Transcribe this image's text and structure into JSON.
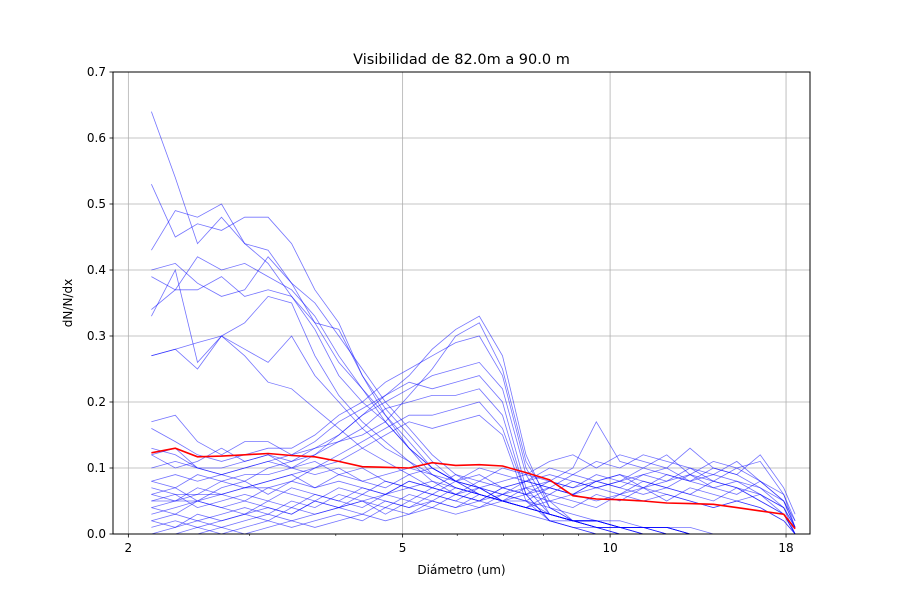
{
  "chart_data": {
    "type": "line",
    "title": "Visibilidad de 82.0m a 90.0 m",
    "xlabel": "Diámetro (um)",
    "ylabel": "dN/N/dx",
    "xscale": "log",
    "xlim": [
      1.9,
      19.5
    ],
    "ylim": [
      0,
      0.7
    ],
    "xticks": [
      2,
      5,
      10,
      18
    ],
    "xtick_labels": [
      "2",
      "5",
      "10",
      "18"
    ],
    "yticks": [
      0.0,
      0.1,
      0.2,
      0.3,
      0.4,
      0.5,
      0.6,
      0.7
    ],
    "ytick_labels": [
      "0.0",
      "0.1",
      "0.2",
      "0.3",
      "0.4",
      "0.5",
      "0.6",
      "0.7"
    ],
    "grid": true,
    "x": [
      2.16,
      2.34,
      2.52,
      2.73,
      2.95,
      3.19,
      3.45,
      3.73,
      4.04,
      4.37,
      4.72,
      5.11,
      5.52,
      5.97,
      6.46,
      6.98,
      7.55,
      8.17,
      8.83,
      9.55,
      10.33,
      11.17,
      12.08,
      13.06,
      14.12,
      15.27,
      16.51,
      17.86,
      18.55
    ],
    "individual_color": "#0000ff",
    "mean_color": "#ff0000",
    "series": [
      {
        "values": [
          0.64,
          0.54,
          0.44,
          0.48,
          0.44,
          0.43,
          0.38,
          0.32,
          0.26,
          0.22,
          0.18,
          0.13,
          0.09,
          0.07,
          0.06,
          0.05,
          0.05,
          0.03,
          0.02,
          0.02,
          0.01,
          0.01,
          0.01,
          0.0,
          0.0,
          0.0,
          0.0,
          0.0,
          0.0
        ]
      },
      {
        "values": [
          0.53,
          0.45,
          0.47,
          0.46,
          0.48,
          0.48,
          0.44,
          0.37,
          0.32,
          0.24,
          0.19,
          0.15,
          0.11,
          0.08,
          0.07,
          0.05,
          0.04,
          0.03,
          0.02,
          0.02,
          0.01,
          0.01,
          0.01,
          0.0,
          0.0,
          0.0,
          0.0,
          0.0,
          0.0
        ]
      },
      {
        "values": [
          0.43,
          0.49,
          0.48,
          0.5,
          0.44,
          0.41,
          0.36,
          0.32,
          0.31,
          0.24,
          0.18,
          0.14,
          0.1,
          0.08,
          0.06,
          0.05,
          0.04,
          0.03,
          0.02,
          0.02,
          0.01,
          0.01,
          0.0,
          0.0,
          0.0,
          0.0,
          0.0,
          0.0,
          0.0
        ]
      },
      {
        "values": [
          0.4,
          0.41,
          0.38,
          0.36,
          0.37,
          0.42,
          0.38,
          0.35,
          0.3,
          0.25,
          0.2,
          0.16,
          0.12,
          0.09,
          0.07,
          0.06,
          0.05,
          0.04,
          0.03,
          0.02,
          0.02,
          0.01,
          0.01,
          0.01,
          0.0,
          0.0,
          0.0,
          0.0,
          0.0
        ]
      },
      {
        "values": [
          0.39,
          0.37,
          0.42,
          0.4,
          0.41,
          0.39,
          0.37,
          0.33,
          0.27,
          0.22,
          0.17,
          0.13,
          0.1,
          0.08,
          0.06,
          0.05,
          0.04,
          0.03,
          0.02,
          0.02,
          0.01,
          0.01,
          0.01,
          0.0,
          0.0,
          0.0,
          0.0,
          0.0,
          0.0
        ]
      },
      {
        "values": [
          0.34,
          0.37,
          0.37,
          0.39,
          0.36,
          0.37,
          0.36,
          0.31,
          0.24,
          0.2,
          0.17,
          0.13,
          0.1,
          0.08,
          0.07,
          0.05,
          0.04,
          0.03,
          0.02,
          0.02,
          0.01,
          0.01,
          0.01,
          0.0,
          0.0,
          0.0,
          0.0,
          0.0,
          0.0
        ]
      },
      {
        "values": [
          0.33,
          0.4,
          0.26,
          0.3,
          0.32,
          0.36,
          0.35,
          0.27,
          0.21,
          0.17,
          0.14,
          0.11,
          0.09,
          0.07,
          0.06,
          0.05,
          0.04,
          0.03,
          0.02,
          0.02,
          0.01,
          0.01,
          0.0,
          0.0,
          0.0,
          0.0,
          0.0,
          0.0,
          0.0
        ]
      },
      {
        "values": [
          0.27,
          0.28,
          0.29,
          0.3,
          0.28,
          0.26,
          0.3,
          0.24,
          0.2,
          0.16,
          0.13,
          0.11,
          0.08,
          0.07,
          0.06,
          0.05,
          0.04,
          0.03,
          0.02,
          0.02,
          0.01,
          0.01,
          0.01,
          0.0,
          0.0,
          0.0,
          0.0,
          0.0,
          0.0
        ]
      },
      {
        "values": [
          0.27,
          0.28,
          0.25,
          0.3,
          0.27,
          0.23,
          0.22,
          0.19,
          0.16,
          0.13,
          0.11,
          0.09,
          0.07,
          0.06,
          0.05,
          0.04,
          0.03,
          0.02,
          0.02,
          0.01,
          0.01,
          0.01,
          0.0,
          0.0,
          0.0,
          0.0,
          0.0,
          0.0,
          0.0
        ]
      },
      {
        "values": [
          0.17,
          0.18,
          0.14,
          0.12,
          0.14,
          0.14,
          0.12,
          0.13,
          0.14,
          0.15,
          0.17,
          0.21,
          0.25,
          0.3,
          0.32,
          0.25,
          0.11,
          0.05,
          0.02,
          0.01,
          0.01,
          0.0,
          0.0,
          0.0,
          0.0,
          0.0,
          0.0,
          0.0,
          0.0
        ]
      },
      {
        "values": [
          0.13,
          0.12,
          0.1,
          0.09,
          0.1,
          0.11,
          0.12,
          0.14,
          0.17,
          0.19,
          0.21,
          0.24,
          0.28,
          0.31,
          0.33,
          0.27,
          0.12,
          0.04,
          0.02,
          0.01,
          0.01,
          0.0,
          0.0,
          0.0,
          0.0,
          0.0,
          0.0,
          0.0,
          0.0
        ]
      },
      {
        "values": [
          0.16,
          0.14,
          0.12,
          0.11,
          0.12,
          0.13,
          0.13,
          0.15,
          0.18,
          0.2,
          0.23,
          0.25,
          0.27,
          0.29,
          0.3,
          0.24,
          0.1,
          0.04,
          0.02,
          0.01,
          0.01,
          0.0,
          0.0,
          0.0,
          0.0,
          0.0,
          0.0,
          0.0,
          0.0
        ]
      },
      {
        "values": [
          0.12,
          0.13,
          0.1,
          0.1,
          0.11,
          0.12,
          0.11,
          0.12,
          0.15,
          0.18,
          0.2,
          0.22,
          0.24,
          0.25,
          0.26,
          0.22,
          0.09,
          0.03,
          0.02,
          0.01,
          0.0,
          0.0,
          0.0,
          0.0,
          0.0,
          0.0,
          0.0,
          0.0,
          0.0
        ]
      },
      {
        "values": [
          0.08,
          0.09,
          0.08,
          0.09,
          0.08,
          0.1,
          0.11,
          0.13,
          0.15,
          0.18,
          0.21,
          0.23,
          0.22,
          0.23,
          0.24,
          0.2,
          0.07,
          0.03,
          0.02,
          0.01,
          0.0,
          0.0,
          0.0,
          0.0,
          0.0,
          0.0,
          0.0,
          0.0,
          0.0
        ]
      },
      {
        "values": [
          0.07,
          0.06,
          0.06,
          0.08,
          0.09,
          0.09,
          0.1,
          0.12,
          0.14,
          0.16,
          0.19,
          0.2,
          0.21,
          0.21,
          0.22,
          0.18,
          0.06,
          0.02,
          0.01,
          0.01,
          0.0,
          0.0,
          0.0,
          0.0,
          0.0,
          0.0,
          0.0,
          0.0,
          0.0
        ]
      },
      {
        "values": [
          0.05,
          0.05,
          0.05,
          0.06,
          0.07,
          0.08,
          0.09,
          0.1,
          0.12,
          0.14,
          0.16,
          0.18,
          0.18,
          0.19,
          0.2,
          0.16,
          0.06,
          0.02,
          0.01,
          0.0,
          0.0,
          0.0,
          0.0,
          0.0,
          0.0,
          0.0,
          0.0,
          0.0,
          0.0
        ]
      },
      {
        "values": [
          0.04,
          0.05,
          0.06,
          0.06,
          0.07,
          0.07,
          0.08,
          0.1,
          0.11,
          0.13,
          0.15,
          0.17,
          0.16,
          0.17,
          0.18,
          0.15,
          0.05,
          0.02,
          0.01,
          0.0,
          0.0,
          0.0,
          0.0,
          0.0,
          0.0,
          0.0,
          0.0,
          0.0,
          0.0
        ]
      },
      {
        "values": [
          0.1,
          0.11,
          0.1,
          0.09,
          0.1,
          0.11,
          0.1,
          0.09,
          0.1,
          0.08,
          0.09,
          0.1,
          0.09,
          0.08,
          0.1,
          0.09,
          0.08,
          0.1,
          0.09,
          0.11,
          0.1,
          0.12,
          0.11,
          0.1,
          0.09,
          0.11,
          0.08,
          0.05,
          0.02
        ]
      },
      {
        "values": [
          0.05,
          0.06,
          0.04,
          0.05,
          0.06,
          0.05,
          0.07,
          0.06,
          0.05,
          0.07,
          0.06,
          0.08,
          0.07,
          0.09,
          0.08,
          0.1,
          0.09,
          0.11,
          0.12,
          0.1,
          0.12,
          0.11,
          0.1,
          0.13,
          0.1,
          0.09,
          0.12,
          0.07,
          0.03
        ]
      },
      {
        "values": [
          0.03,
          0.04,
          0.05,
          0.04,
          0.03,
          0.05,
          0.04,
          0.06,
          0.05,
          0.04,
          0.06,
          0.07,
          0.06,
          0.08,
          0.07,
          0.08,
          0.09,
          0.08,
          0.1,
          0.17,
          0.11,
          0.1,
          0.12,
          0.09,
          0.11,
          0.1,
          0.08,
          0.06,
          0.01
        ]
      },
      {
        "values": [
          0.02,
          0.03,
          0.02,
          0.03,
          0.04,
          0.03,
          0.05,
          0.04,
          0.06,
          0.05,
          0.04,
          0.06,
          0.05,
          0.07,
          0.06,
          0.05,
          0.07,
          0.08,
          0.07,
          0.09,
          0.08,
          0.1,
          0.09,
          0.08,
          0.1,
          0.09,
          0.07,
          0.05,
          0.01
        ]
      },
      {
        "values": [
          0.06,
          0.05,
          0.07,
          0.06,
          0.05,
          0.07,
          0.06,
          0.05,
          0.07,
          0.06,
          0.08,
          0.07,
          0.06,
          0.05,
          0.07,
          0.06,
          0.08,
          0.07,
          0.09,
          0.08,
          0.07,
          0.09,
          0.08,
          0.09,
          0.07,
          0.06,
          0.08,
          0.05,
          0.01
        ]
      },
      {
        "values": [
          0.01,
          0.02,
          0.01,
          0.02,
          0.03,
          0.02,
          0.04,
          0.03,
          0.04,
          0.05,
          0.03,
          0.05,
          0.04,
          0.06,
          0.05,
          0.07,
          0.06,
          0.08,
          0.07,
          0.08,
          0.09,
          0.07,
          0.08,
          0.1,
          0.08,
          0.07,
          0.06,
          0.04,
          0.0
        ]
      },
      {
        "values": [
          0.0,
          0.01,
          0.02,
          0.01,
          0.02,
          0.03,
          0.02,
          0.03,
          0.04,
          0.03,
          0.05,
          0.04,
          0.06,
          0.05,
          0.04,
          0.06,
          0.07,
          0.06,
          0.08,
          0.07,
          0.08,
          0.07,
          0.09,
          0.08,
          0.07,
          0.08,
          0.06,
          0.04,
          0.01
        ]
      },
      {
        "values": [
          0.08,
          0.07,
          0.09,
          0.08,
          0.07,
          0.08,
          0.09,
          0.07,
          0.08,
          0.07,
          0.06,
          0.08,
          0.07,
          0.06,
          0.08,
          0.07,
          0.06,
          0.07,
          0.06,
          0.08,
          0.07,
          0.06,
          0.07,
          0.06,
          0.05,
          0.07,
          0.05,
          0.03,
          0.0
        ]
      },
      {
        "values": [
          0.04,
          0.03,
          0.05,
          0.04,
          0.05,
          0.04,
          0.03,
          0.05,
          0.04,
          0.06,
          0.05,
          0.04,
          0.05,
          0.04,
          0.06,
          0.05,
          0.04,
          0.06,
          0.05,
          0.04,
          0.06,
          0.05,
          0.06,
          0.05,
          0.04,
          0.05,
          0.04,
          0.02,
          0.0
        ]
      },
      {
        "values": [
          0.0,
          0.0,
          0.01,
          0.0,
          0.01,
          0.02,
          0.01,
          0.02,
          0.03,
          0.02,
          0.04,
          0.03,
          0.05,
          0.04,
          0.05,
          0.06,
          0.05,
          0.07,
          0.06,
          0.07,
          0.06,
          0.08,
          0.07,
          0.06,
          0.08,
          0.07,
          0.05,
          0.03,
          0.0
        ]
      },
      {
        "values": [
          0.0,
          0.0,
          0.0,
          0.01,
          0.0,
          0.01,
          0.02,
          0.01,
          0.02,
          0.03,
          0.02,
          0.03,
          0.04,
          0.03,
          0.04,
          0.05,
          0.04,
          0.05,
          0.06,
          0.05,
          0.06,
          0.07,
          0.05,
          0.07,
          0.06,
          0.05,
          0.06,
          0.03,
          0.0
        ]
      },
      {
        "values": [
          0.12,
          0.1,
          0.11,
          0.13,
          0.11,
          0.12,
          0.1,
          0.11,
          0.09,
          0.1,
          0.08,
          0.07,
          0.08,
          0.06,
          0.07,
          0.05,
          0.06,
          0.05,
          0.04,
          0.06,
          0.05,
          0.07,
          0.06,
          0.05,
          0.04,
          0.05,
          0.04,
          0.02,
          0.0
        ]
      },
      {
        "values": [
          0.06,
          0.07,
          0.05,
          0.07,
          0.08,
          0.06,
          0.08,
          0.07,
          0.09,
          0.08,
          0.07,
          0.09,
          0.1,
          0.08,
          0.09,
          0.07,
          0.08,
          0.09,
          0.08,
          0.07,
          0.08,
          0.09,
          0.1,
          0.08,
          0.09,
          0.08,
          0.07,
          0.04,
          0.01
        ]
      },
      {
        "values": [
          0.02,
          0.01,
          0.03,
          0.02,
          0.03,
          0.04,
          0.03,
          0.05,
          0.04,
          0.05,
          0.06,
          0.05,
          0.07,
          0.06,
          0.05,
          0.07,
          0.08,
          0.07,
          0.06,
          0.08,
          0.09,
          0.08,
          0.07,
          0.09,
          0.08,
          0.1,
          0.11,
          0.06,
          0.02
        ]
      }
    ],
    "mean": {
      "values": [
        0.123,
        0.13,
        0.117,
        0.118,
        0.12,
        0.122,
        0.119,
        0.117,
        0.11,
        0.102,
        0.101,
        0.1,
        0.108,
        0.104,
        0.105,
        0.103,
        0.093,
        0.082,
        0.058,
        0.053,
        0.052,
        0.05,
        0.047,
        0.046,
        0.045,
        0.04,
        0.035,
        0.03,
        0.008
      ]
    }
  }
}
